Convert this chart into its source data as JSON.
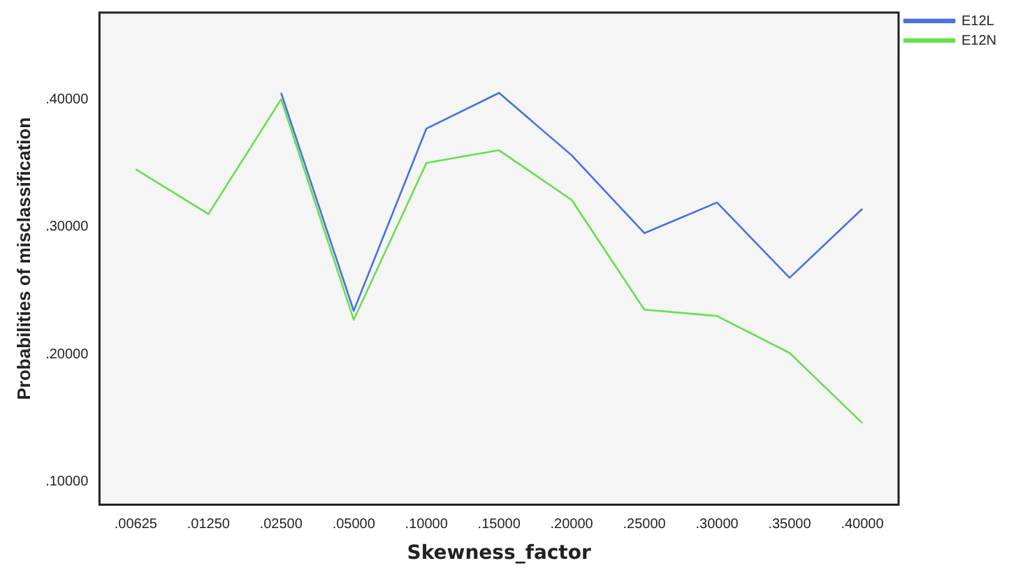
{
  "chart_data": {
    "type": "line",
    "xlabel": "Skewness_factor",
    "ylabel": "Probabilities of misclassification",
    "categories": [
      ".00625",
      ".01250",
      ".02500",
      ".05000",
      ".10000",
      ".15000",
      ".20000",
      ".25000",
      ".30000",
      ".35000",
      ".40000"
    ],
    "series": [
      {
        "name": "E12L",
        "color": "#4a6fe0",
        "values": [
          null,
          null,
          0.405,
          0.234,
          0.377,
          0.405,
          0.356,
          0.295,
          0.319,
          0.26,
          0.314
        ]
      },
      {
        "name": "E12N",
        "color": "#66e04a",
        "values": [
          0.345,
          0.31,
          0.4,
          0.227,
          0.35,
          0.36,
          0.321,
          0.235,
          0.23,
          0.201,
          0.146
        ]
      }
    ],
    "ylim": [
      0.082,
      0.468
    ],
    "yticks": [
      {
        "value": 0.1,
        "label": ".10000"
      },
      {
        "value": 0.2,
        "label": ".20000"
      },
      {
        "value": 0.3,
        "label": ".30000"
      },
      {
        "value": 0.4,
        "label": ".40000"
      }
    ],
    "grid": false,
    "legend": "top right",
    "marker": "none",
    "line_style": "solid"
  }
}
